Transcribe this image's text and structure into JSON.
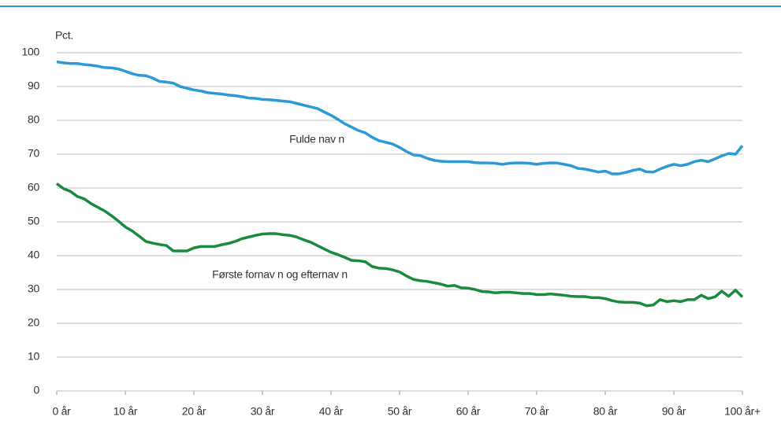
{
  "chart_data": {
    "type": "line",
    "y_label": "Pct.",
    "annotations": [
      "Fulde nav n",
      "Første fornav n og efternav n"
    ],
    "x": [
      0,
      1,
      2,
      3,
      4,
      5,
      6,
      7,
      8,
      9,
      10,
      11,
      12,
      13,
      14,
      15,
      16,
      17,
      18,
      19,
      20,
      21,
      22,
      23,
      24,
      25,
      26,
      27,
      28,
      29,
      30,
      31,
      32,
      33,
      34,
      35,
      36,
      37,
      38,
      39,
      40,
      41,
      42,
      43,
      44,
      45,
      46,
      47,
      48,
      49,
      50,
      51,
      52,
      53,
      54,
      55,
      56,
      57,
      58,
      59,
      60,
      61,
      62,
      63,
      64,
      65,
      66,
      67,
      68,
      69,
      70,
      71,
      72,
      73,
      74,
      75,
      76,
      77,
      78,
      79,
      80,
      81,
      82,
      83,
      84,
      85,
      86,
      87,
      88,
      89,
      90,
      91,
      92,
      93,
      94,
      95,
      96,
      97,
      98,
      99,
      100
    ],
    "series": [
      {
        "name": "Fulde nav n",
        "color": "#2b9ad6",
        "values": [
          97.3,
          97,
          96.8,
          96.8,
          96.5,
          96.3,
          96,
          95.6,
          95.5,
          95.2,
          94.5,
          93.8,
          93.3,
          93.2,
          92.5,
          91.5,
          91.3,
          91,
          90,
          89.5,
          89,
          88.7,
          88.2,
          88,
          87.8,
          87.5,
          87.3,
          87,
          86.6,
          86.5,
          86.2,
          86.1,
          85.9,
          85.7,
          85.5,
          85,
          84.5,
          84,
          83.5,
          82.5,
          81.5,
          80.3,
          79,
          78,
          77,
          76.3,
          75,
          74,
          73.5,
          73,
          72,
          70.8,
          69.8,
          69.6,
          68.8,
          68.2,
          67.9,
          67.8,
          67.8,
          67.8,
          67.8,
          67.5,
          67.4,
          67.4,
          67.3,
          67,
          67.3,
          67.4,
          67.4,
          67.3,
          67,
          67.3,
          67.4,
          67.4,
          67,
          66.6,
          65.8,
          65.6,
          65.2,
          64.7,
          65,
          64.2,
          64.2,
          64.6,
          65.2,
          65.6,
          64.8,
          64.7,
          65.6,
          66.4,
          67,
          66.6,
          67,
          67.8,
          68.2,
          67.8,
          68.6,
          69.5,
          70.2,
          70,
          72.5
        ]
      },
      {
        "name": "Første fornav n og efternav n",
        "color": "#1a8a3c",
        "values": [
          61.3,
          59.8,
          59,
          57.5,
          56.8,
          55.4,
          54.3,
          53.2,
          51.8,
          50.2,
          48.5,
          47.3,
          45.8,
          44.2,
          43.7,
          43.3,
          43,
          41.4,
          41.4,
          41.4,
          42.3,
          42.7,
          42.7,
          42.7,
          43.2,
          43.6,
          44.2,
          45,
          45.5,
          46,
          46.4,
          46.5,
          46.5,
          46.2,
          46,
          45.5,
          44.7,
          44,
          43,
          42,
          41,
          40.3,
          39.5,
          38.6,
          38.5,
          38.2,
          36.8,
          36.3,
          36.2,
          35.8,
          35.2,
          34,
          33,
          32.6,
          32.4,
          32,
          31.6,
          31,
          31.2,
          30.5,
          30.4,
          30,
          29.4,
          29.3,
          29,
          29.2,
          29.2,
          29,
          28.8,
          28.8,
          28.5,
          28.5,
          28.7,
          28.5,
          28.3,
          28,
          27.9,
          27.9,
          27.6,
          27.6,
          27.3,
          26.7,
          26.3,
          26.2,
          26.2,
          26,
          25.2,
          25.4,
          27,
          26.4,
          26.7,
          26.4,
          27,
          27,
          28.3,
          27.3,
          27.8,
          29.5,
          28,
          29.8,
          27.8
        ]
      }
    ],
    "xlim": [
      0,
      100
    ],
    "xticks": [
      {
        "value": 0,
        "label": "0 år"
      },
      {
        "value": 10,
        "label": "10 år"
      },
      {
        "value": 20,
        "label": "20 år"
      },
      {
        "value": 30,
        "label": "30 år"
      },
      {
        "value": 40,
        "label": "40 år"
      },
      {
        "value": 50,
        "label": "50 år"
      },
      {
        "value": 60,
        "label": "60 år"
      },
      {
        "value": 70,
        "label": "70 år"
      },
      {
        "value": 80,
        "label": "80 år"
      },
      {
        "value": 90,
        "label": "90 år"
      },
      {
        "value": 100,
        "label": "100 år+"
      }
    ],
    "ylim": [
      0,
      100
    ],
    "yticks": [
      0,
      10,
      20,
      30,
      40,
      50,
      60,
      70,
      80,
      90,
      100
    ],
    "grid": true
  }
}
